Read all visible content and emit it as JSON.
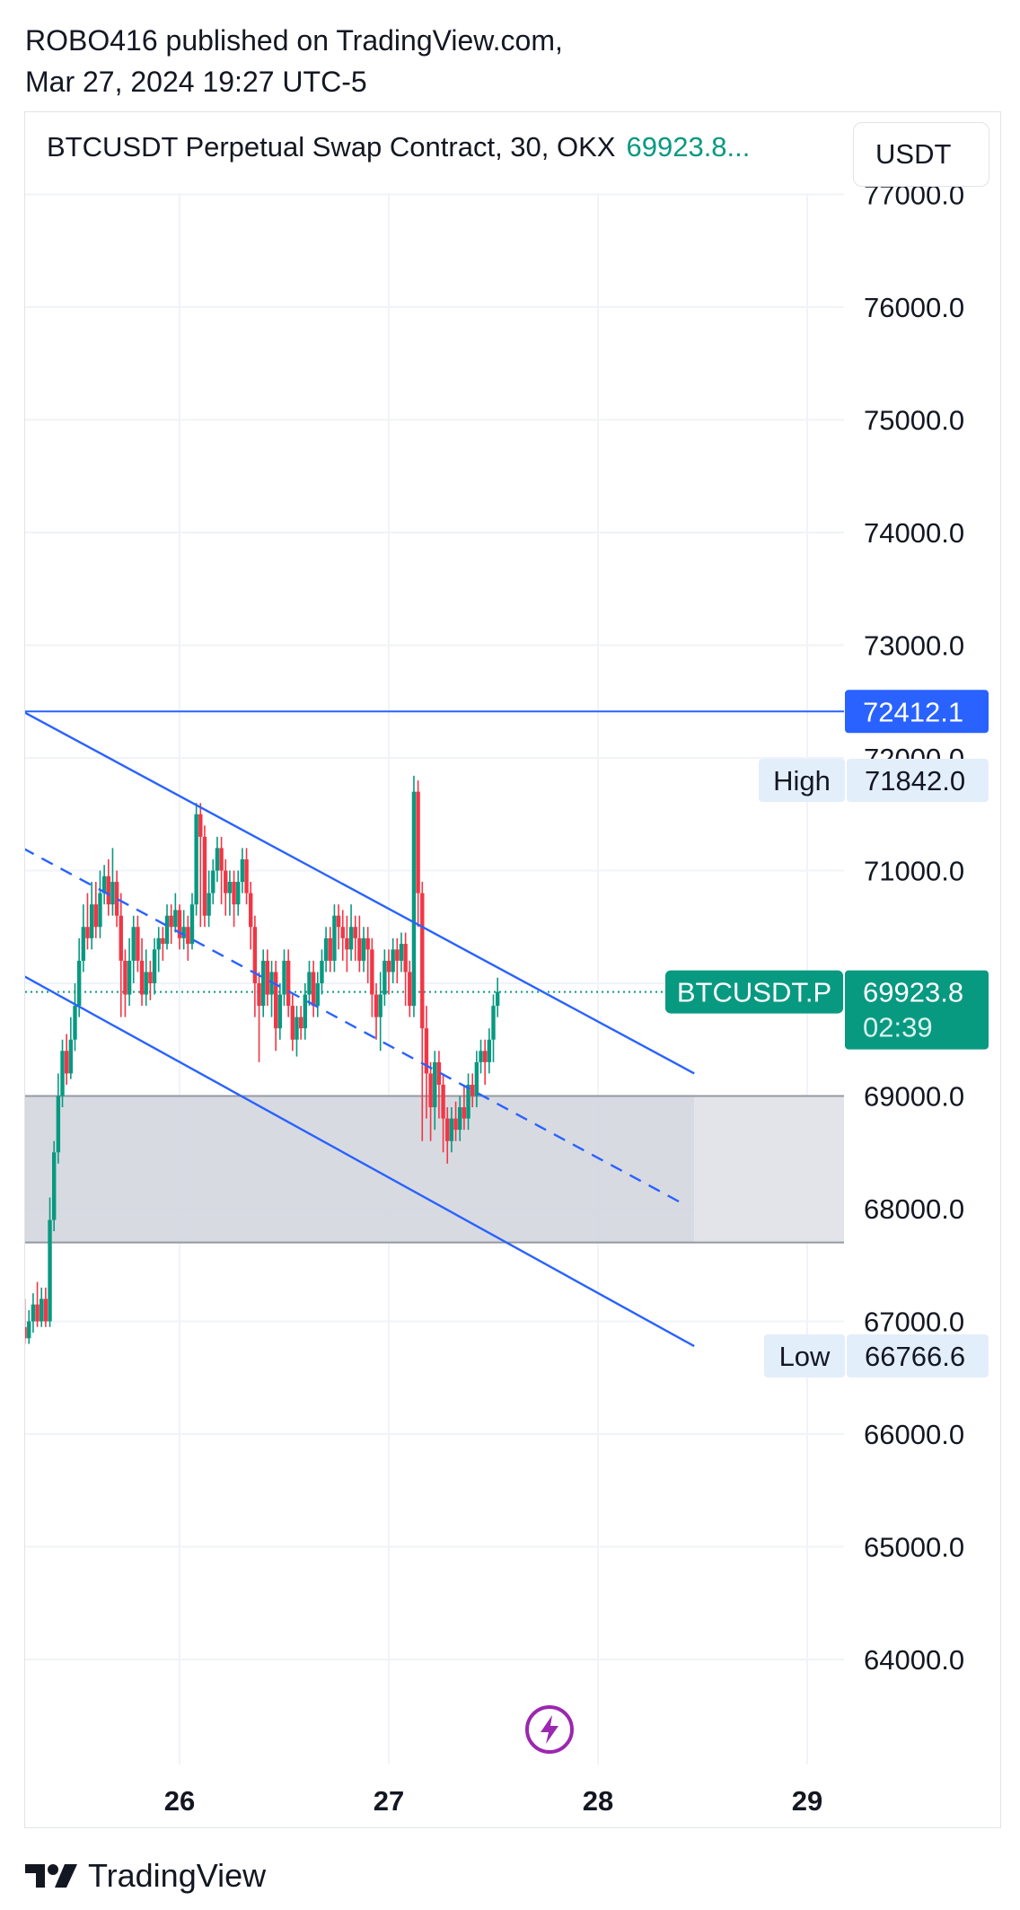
{
  "header": {
    "publisher_line": "ROBO416 published on TradingView.com,",
    "date_line": "Mar 27, 2024 19:27 UTC-5"
  },
  "legend": {
    "symbol": "BTCUSDT Perpetual Swap Contract, 30, OKX",
    "price": "69923.8..."
  },
  "unit_button": "USDT",
  "footer": {
    "brand": "TradingView"
  },
  "colors": {
    "up": "#089981",
    "down": "#f23645",
    "channel": "#2962ff",
    "zone": "#d1d4dc",
    "grid": "#f0f3fa"
  },
  "icons": {
    "lightning": "lightning-icon",
    "logo": "tradingview-logo-icon"
  },
  "chart_data": {
    "type": "candlestick",
    "symbol": "BTCUSDT.P",
    "x_ticks": [
      "26",
      "27",
      "28",
      "29"
    ],
    "x_range": [
      25.25,
      29.2
    ],
    "y_range": [
      63000,
      77000
    ],
    "y_ticks": [
      "77000.0",
      "76000.0",
      "75000.0",
      "74000.0",
      "73000.0",
      "72000.0",
      "71000.0",
      "70000.0",
      "69000.0",
      "68000.0",
      "67000.0",
      "66000.0",
      "65000.0",
      "64000.0"
    ],
    "horizontal_line": {
      "value": 72412.1,
      "label": "72412.1"
    },
    "high": {
      "label": "High",
      "value": "71842.0"
    },
    "low": {
      "label": "Low",
      "value": "66766.6"
    },
    "last_price": {
      "symbol_label": "BTCUSDT.P",
      "value": "69923.8",
      "countdown": "02:39",
      "level": 69923.8
    },
    "zone": {
      "from": 67700,
      "to": 69000,
      "x_start": 25.25,
      "x_end": 28.46
    },
    "channel": {
      "upper": [
        [
          25.25,
          72412
        ],
        [
          28.46,
          69200
        ]
      ],
      "middle": [
        [
          25.25,
          71200
        ],
        [
          28.4,
          68050
        ]
      ],
      "lower": [
        [
          25.25,
          70070
        ],
        [
          28.46,
          66780
        ]
      ]
    },
    "candles": [
      [
        25.26,
        66950,
        66850,
        67200,
        66800
      ],
      [
        25.28,
        66850,
        67000,
        67100,
        66800
      ],
      [
        25.3,
        67000,
        67150,
        67250,
        66900
      ],
      [
        25.32,
        67150,
        67000,
        67350,
        66950
      ],
      [
        25.34,
        67000,
        67200,
        67300,
        66950
      ],
      [
        25.36,
        67200,
        67000,
        67300,
        66950
      ],
      [
        25.38,
        67000,
        67900,
        68100,
        66950
      ],
      [
        25.4,
        67900,
        68500,
        68600,
        67800
      ],
      [
        25.42,
        68500,
        69000,
        69200,
        68400
      ],
      [
        25.44,
        69000,
        69400,
        69500,
        68900
      ],
      [
        25.46,
        69400,
        69200,
        69550,
        69100
      ],
      [
        25.48,
        69200,
        69500,
        69700,
        69150
      ],
      [
        25.5,
        69500,
        69800,
        70000,
        69400
      ],
      [
        25.52,
        69800,
        70200,
        70400,
        69700
      ],
      [
        25.54,
        70200,
        70500,
        70700,
        70100
      ],
      [
        25.56,
        70500,
        70400,
        70800,
        70300
      ],
      [
        25.58,
        70400,
        70700,
        70900,
        70300
      ],
      [
        25.6,
        70700,
        70500,
        70900,
        70400
      ],
      [
        25.62,
        70500,
        70800,
        71000,
        70400
      ],
      [
        25.64,
        70800,
        70950,
        71050,
        70700
      ],
      [
        25.66,
        70950,
        70700,
        71100,
        70600
      ],
      [
        25.68,
        70700,
        70900,
        71200,
        70600
      ],
      [
        25.7,
        70900,
        70600,
        71000,
        70500
      ],
      [
        25.72,
        70600,
        70200,
        70800,
        69700
      ],
      [
        25.74,
        70200,
        69900,
        70300,
        69700
      ],
      [
        25.76,
        69900,
        70200,
        70400,
        69800
      ],
      [
        25.78,
        70200,
        70500,
        70600,
        70000
      ],
      [
        25.8,
        70500,
        70200,
        70600,
        70100
      ],
      [
        25.82,
        70200,
        69900,
        70400,
        69800
      ],
      [
        25.84,
        69900,
        70100,
        70300,
        69800
      ],
      [
        25.86,
        70100,
        70000,
        70200,
        69850
      ],
      [
        25.88,
        70000,
        70300,
        70400,
        69900
      ],
      [
        25.9,
        70300,
        70400,
        70500,
        70100
      ],
      [
        25.92,
        70400,
        70350,
        70500,
        70200
      ],
      [
        25.94,
        70350,
        70600,
        70700,
        70300
      ],
      [
        25.96,
        70600,
        70500,
        70700,
        70350
      ],
      [
        25.98,
        70500,
        70650,
        70800,
        70450
      ],
      [
        26.0,
        70650,
        70400,
        70700,
        70300
      ],
      [
        26.02,
        70400,
        70500,
        70650,
        70300
      ],
      [
        26.04,
        70500,
        70350,
        70600,
        70200
      ],
      [
        26.06,
        70350,
        70700,
        70800,
        70300
      ],
      [
        26.08,
        70700,
        71500,
        71600,
        70600
      ],
      [
        26.1,
        71500,
        71300,
        71600,
        70500
      ],
      [
        26.12,
        71300,
        70600,
        71400,
        70500
      ],
      [
        26.14,
        70600,
        70800,
        71000,
        70500
      ],
      [
        26.16,
        70800,
        71000,
        71100,
        70700
      ],
      [
        26.18,
        71000,
        71200,
        71300,
        70900
      ],
      [
        26.2,
        71200,
        71000,
        71300,
        70700
      ],
      [
        26.22,
        71000,
        70800,
        71100,
        70600
      ],
      [
        26.24,
        70800,
        70900,
        71000,
        70600
      ],
      [
        26.26,
        70900,
        70700,
        71000,
        70500
      ],
      [
        26.28,
        70700,
        70900,
        71000,
        70600
      ],
      [
        26.3,
        70900,
        71100,
        71200,
        70800
      ],
      [
        26.32,
        71100,
        70800,
        71200,
        70700
      ],
      [
        26.34,
        70800,
        70500,
        70900,
        70300
      ],
      [
        26.36,
        70500,
        70000,
        70600,
        69700
      ],
      [
        26.38,
        70000,
        69800,
        70100,
        69300
      ],
      [
        26.4,
        69800,
        70200,
        70300,
        69700
      ],
      [
        26.42,
        70200,
        69900,
        70300,
        69800
      ],
      [
        26.44,
        69900,
        70100,
        70200,
        69700
      ],
      [
        26.46,
        70100,
        69600,
        70200,
        69400
      ],
      [
        26.48,
        69600,
        69900,
        70000,
        69500
      ],
      [
        26.5,
        69900,
        70200,
        70300,
        69800
      ],
      [
        26.52,
        70200,
        69800,
        70300,
        69700
      ],
      [
        26.54,
        69800,
        69500,
        69900,
        69400
      ],
      [
        26.56,
        69500,
        69700,
        69800,
        69350
      ],
      [
        26.58,
        69700,
        69600,
        69800,
        69500
      ],
      [
        26.6,
        69600,
        69900,
        70000,
        69500
      ],
      [
        26.62,
        69900,
        70100,
        70200,
        69800
      ],
      [
        26.64,
        70100,
        69800,
        70200,
        69700
      ],
      [
        26.66,
        69800,
        70000,
        70100,
        69700
      ],
      [
        26.68,
        70000,
        70200,
        70300,
        69900
      ],
      [
        26.7,
        70200,
        70400,
        70500,
        70100
      ],
      [
        26.72,
        70400,
        70200,
        70500,
        70100
      ],
      [
        26.74,
        70200,
        70600,
        70700,
        70100
      ],
      [
        26.76,
        70600,
        70500,
        70700,
        70300
      ],
      [
        26.78,
        70500,
        70400,
        70650,
        70200
      ],
      [
        26.8,
        70400,
        70300,
        70600,
        70100
      ],
      [
        26.82,
        70300,
        70500,
        70700,
        70200
      ],
      [
        26.84,
        70500,
        70400,
        70600,
        70200
      ],
      [
        26.86,
        70400,
        70200,
        70600,
        70100
      ],
      [
        26.88,
        70200,
        70400,
        70500,
        70100
      ],
      [
        26.9,
        70400,
        70300,
        70500,
        70000
      ],
      [
        26.92,
        70300,
        69900,
        70400,
        69700
      ],
      [
        26.94,
        69900,
        69700,
        70000,
        69500
      ],
      [
        26.96,
        69700,
        69900,
        70100,
        69400
      ],
      [
        26.98,
        69900,
        70200,
        70300,
        69800
      ],
      [
        27.0,
        70200,
        70100,
        70300,
        69900
      ],
      [
        27.02,
        70100,
        70300,
        70400,
        70000
      ],
      [
        27.04,
        70300,
        70200,
        70400,
        70000
      ],
      [
        27.06,
        70200,
        70350,
        70450,
        70100
      ],
      [
        27.08,
        70350,
        70100,
        70450,
        69800
      ],
      [
        27.1,
        70100,
        69800,
        70200,
        69700
      ],
      [
        27.12,
        69800,
        71700,
        71842,
        69700
      ],
      [
        27.14,
        71700,
        70800,
        71800,
        70500
      ],
      [
        27.16,
        70800,
        69600,
        70900,
        68600
      ],
      [
        27.18,
        69600,
        69200,
        69800,
        68800
      ],
      [
        27.2,
        69200,
        68900,
        69300,
        68600
      ],
      [
        27.22,
        68900,
        69300,
        69400,
        68700
      ],
      [
        27.24,
        69300,
        69100,
        69400,
        68800
      ],
      [
        27.26,
        69100,
        68800,
        69200,
        68500
      ],
      [
        27.28,
        68800,
        68600,
        68900,
        68400
      ],
      [
        27.3,
        68600,
        68800,
        68900,
        68500
      ],
      [
        27.32,
        68800,
        68700,
        68950,
        68600
      ],
      [
        27.34,
        68700,
        68900,
        69000,
        68600
      ],
      [
        27.36,
        68900,
        68800,
        69100,
        68700
      ],
      [
        27.38,
        68800,
        69100,
        69200,
        68700
      ],
      [
        27.4,
        69100,
        69000,
        69200,
        68900
      ],
      [
        27.42,
        69000,
        69300,
        69400,
        68900
      ],
      [
        27.44,
        69300,
        69400,
        69500,
        69200
      ],
      [
        27.46,
        69400,
        69300,
        69500,
        69100
      ],
      [
        27.48,
        69300,
        69500,
        69600,
        69200
      ],
      [
        27.5,
        69500,
        69800,
        69900,
        69300
      ],
      [
        27.52,
        69800,
        69923.8,
        70050,
        69700
      ]
    ]
  }
}
